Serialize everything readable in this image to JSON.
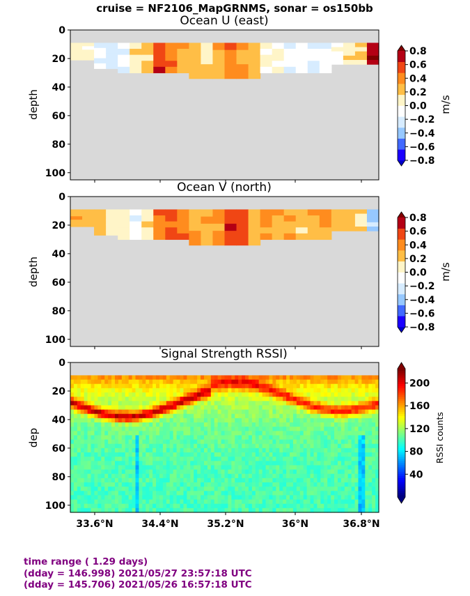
{
  "suptitle": "cruise = NF2106_MapGRNMS,  sonar = os150bb",
  "footer": {
    "color": "#800080",
    "line1": "time range ( 1.29 days)",
    "line2": "(dday = 146.998) 2021/05/27 23:57:18 UTC",
    "line3": "(dday = 145.706) 2021/05/26 16:57:18 UTC"
  },
  "colors": {
    "no_data": "#d9d9d9",
    "velocity_levels": [
      "#1a00ff",
      "#4169ff",
      "#96c8ff",
      "#d7ecff",
      "#ffffff",
      "#fff5c8",
      "#ffbe46",
      "#ff8c1e",
      "#f04614",
      "#b40014"
    ],
    "velocity_under": "#0000c8",
    "velocity_over": "#800000"
  },
  "chart_data": [
    {
      "type": "heatmap",
      "title": "Ocean U (east)",
      "ylabel": "depth",
      "ylim": [
        105,
        0
      ],
      "yticks": [
        "0",
        "20",
        "40",
        "60",
        "80",
        "100"
      ],
      "colorbar": {
        "label": "m/s",
        "range": [
          -0.8,
          0.8
        ],
        "ticks": [
          "0.8",
          "0.6",
          "0.4",
          "0.2",
          "0.0",
          "−0.2",
          "−0.4",
          "−0.6",
          "−0.8"
        ]
      },
      "data_depth_range_m": [
        9,
        34
      ],
      "velocity_profile_m_s": [
        0.1,
        0.05,
        -0.15,
        -0.2,
        -0.1,
        0.1,
        0.2,
        0.6,
        0.5,
        0.3,
        0.25,
        0.15,
        0.3,
        0.45,
        0.35,
        0.2,
        0.05,
        0.0,
        -0.1,
        -0.1,
        -0.15,
        -0.1,
        0.0,
        0.1,
        0.2,
        0.8
      ]
    },
    {
      "type": "heatmap",
      "title": "Ocean V (north)",
      "ylabel": "depth",
      "ylim": [
        105,
        0
      ],
      "yticks": [
        "0",
        "20",
        "40",
        "60",
        "80",
        "100"
      ],
      "colorbar": {
        "label": "m/s",
        "range": [
          -0.8,
          0.8
        ],
        "ticks": [
          "0.8",
          "0.6",
          "0.4",
          "0.2",
          "0.0",
          "−0.2",
          "−0.4",
          "−0.6",
          "−0.8"
        ]
      },
      "data_depth_range_m": [
        9,
        34
      ],
      "velocity_profile_m_s": [
        0.25,
        0.25,
        0.25,
        0.1,
        0.05,
        -0.1,
        0.1,
        0.4,
        0.5,
        0.45,
        0.3,
        0.25,
        0.35,
        0.65,
        0.5,
        0.3,
        0.35,
        0.3,
        0.25,
        0.2,
        0.25,
        0.3,
        0.25,
        0.2,
        0.1,
        -0.3
      ]
    },
    {
      "type": "heatmap",
      "title": "Signal Strength RSSI)",
      "ylabel": "dep",
      "ylim": [
        105,
        0
      ],
      "yticks": [
        "0",
        "20",
        "40",
        "60",
        "80",
        "100"
      ],
      "xticks": [
        "33.6°N",
        "34.4°N",
        "35.2°N",
        "36°N",
        "36.8°N"
      ],
      "colorbar": {
        "label": "RSSI counts",
        "range": [
          0,
          225
        ],
        "ticks": [
          "200",
          "160",
          "120",
          "80",
          "40"
        ]
      },
      "data_depth_range_m": [
        9,
        105
      ],
      "rssi_surface_counts": 170,
      "rssi_peak_counts": 210,
      "rssi_deep_counts": 100
    }
  ]
}
